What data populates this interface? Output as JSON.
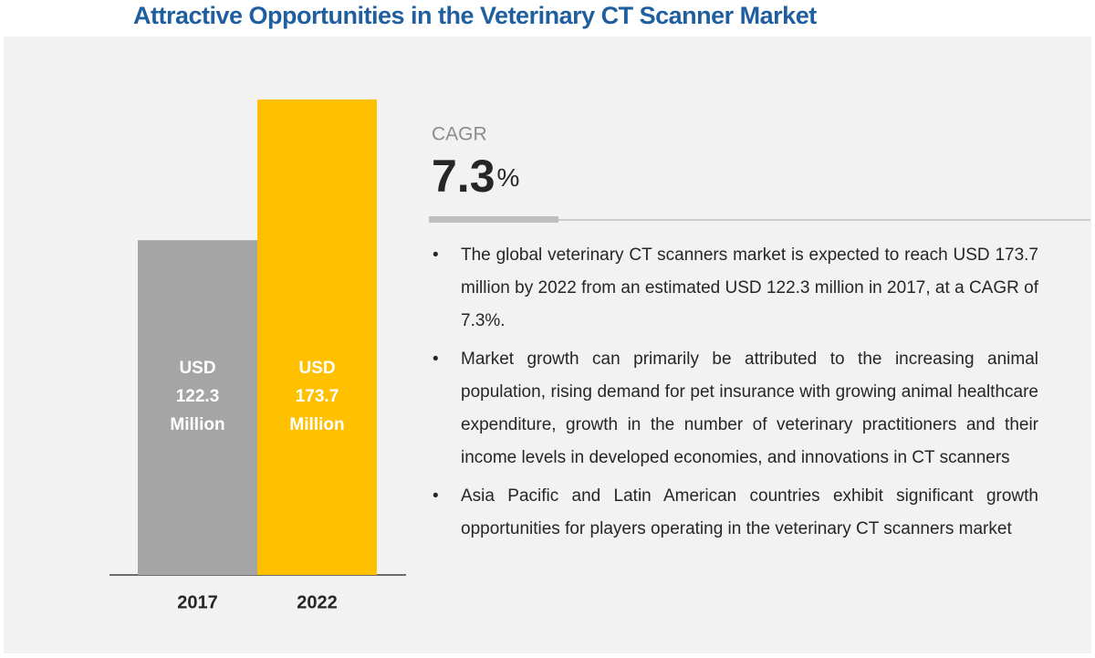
{
  "chart_data": {
    "type": "bar",
    "title": "Attractive Opportunities in the Veterinary CT Scanner Market",
    "categories": [
      "2017",
      "2022"
    ],
    "values": [
      122.3,
      173.7
    ],
    "value_labels": [
      "USD 122.3 Million",
      "USD 173.7 Million"
    ],
    "colors": [
      "#a5a5a5",
      "#ffc000"
    ],
    "cagr": {
      "label": "CAGR",
      "value": 7.3,
      "unit": "%"
    },
    "bullets": [
      "The global veterinary CT scanners market is expected to reach USD 173.7 million by 2022 from an estimated USD 122.3 million in 2017, at a CAGR of 7.3%.",
      "Market growth can primarily be attributed to the increasing animal population, rising demand for pet insurance with growing animal healthcare expenditure, growth in the number of veterinary practitioners and their income levels in developed economies, and innovations in CT scanners",
      "Asia Pacific and Latin American countries exhibit significant growth opportunities for players operating in the veterinary CT scanners market"
    ]
  }
}
